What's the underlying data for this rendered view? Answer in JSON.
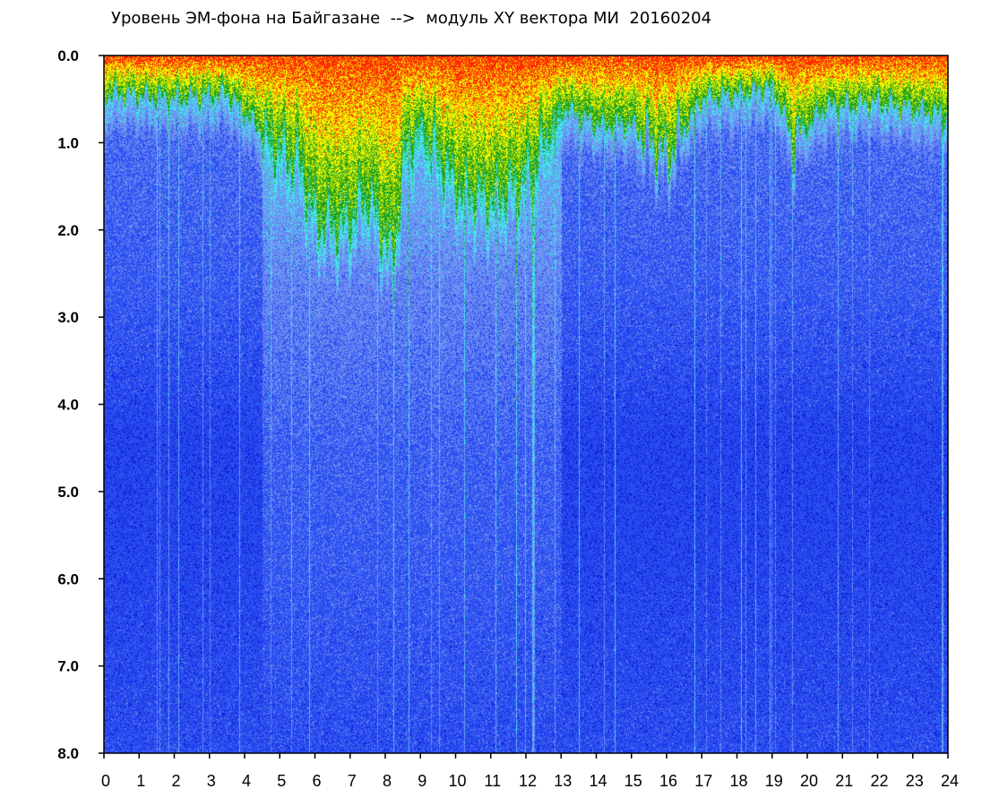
{
  "chart_data": {
    "type": "heatmap",
    "title": "Уровень ЭМ-фона на Байгазане  -->  модуль XY вектора МИ  20160204",
    "xlabel": "",
    "ylabel": "",
    "xlim": [
      0,
      24
    ],
    "ylim": [
      8.0,
      0.0
    ],
    "y_axis_inverted": true,
    "x_ticks": [
      "0",
      "1",
      "2",
      "3",
      "4",
      "5",
      "6",
      "7",
      "8",
      "9",
      "10",
      "11",
      "12",
      "13",
      "14",
      "15",
      "16",
      "17",
      "18",
      "19",
      "20",
      "21",
      "22",
      "23",
      "24"
    ],
    "y_ticks": [
      "0.0",
      "1.0",
      "2.0",
      "3.0",
      "4.0",
      "5.0",
      "6.0",
      "7.0",
      "8.0"
    ],
    "colormap": [
      "#0a1fd8",
      "#2a4ef0",
      "#6f8ff2",
      "#44e6ee",
      "#1ea31e",
      "#f2f200",
      "#ff2a00"
    ],
    "intensity_peak_hours": [
      {
        "x": 0.5,
        "edge": 0.45
      },
      {
        "x": 2.0,
        "edge": 0.5
      },
      {
        "x": 3.5,
        "edge": 0.45
      },
      {
        "x": 4.5,
        "edge": 0.9
      },
      {
        "x": 5.5,
        "edge": 1.2
      },
      {
        "x": 6.0,
        "edge": 1.9
      },
      {
        "x": 6.8,
        "edge": 2.0
      },
      {
        "x": 7.5,
        "edge": 1.6
      },
      {
        "x": 8.2,
        "edge": 2.4
      },
      {
        "x": 8.6,
        "edge": 1.0
      },
      {
        "x": 9.0,
        "edge": 0.8
      },
      {
        "x": 10.0,
        "edge": 1.5
      },
      {
        "x": 11.0,
        "edge": 1.7
      },
      {
        "x": 12.0,
        "edge": 1.4
      },
      {
        "x": 13.0,
        "edge": 0.6
      },
      {
        "x": 14.0,
        "edge": 0.8
      },
      {
        "x": 15.0,
        "edge": 0.8
      },
      {
        "x": 16.0,
        "edge": 1.2
      },
      {
        "x": 17.0,
        "edge": 0.5
      },
      {
        "x": 18.0,
        "edge": 0.45
      },
      {
        "x": 19.0,
        "edge": 0.35
      },
      {
        "x": 19.6,
        "edge": 1.0
      },
      {
        "x": 20.5,
        "edge": 0.6
      },
      {
        "x": 22.0,
        "edge": 0.55
      },
      {
        "x": 24.0,
        "edge": 0.7
      }
    ],
    "grid": false
  }
}
